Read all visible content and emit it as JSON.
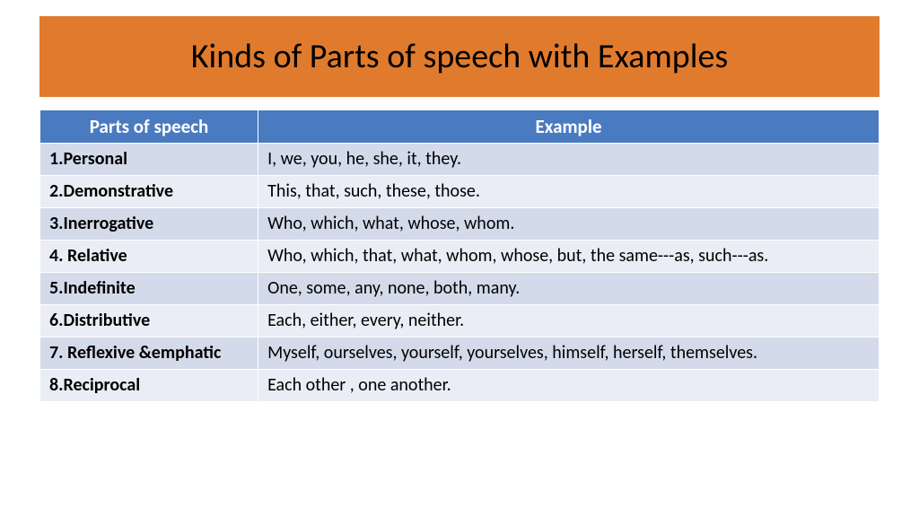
{
  "title": "Kinds of Parts of speech with Examples",
  "colors": {
    "title_bg": "#e07b2e",
    "title_text": "#000000",
    "header_bg": "#4a7ac0",
    "header_text": "#ffffff",
    "row_odd_bg": "#d3daea",
    "row_even_bg": "#eaedf5",
    "cell_border": "#ffffff"
  },
  "columns": {
    "parts": "Parts of speech",
    "example": "Example"
  },
  "rows": [
    {
      "label": "1.Personal",
      "example": "I, we, you, he, she, it, they."
    },
    {
      "label": "2.Demonstrative",
      "example": "This, that, such, these, those."
    },
    {
      "label": "3.Inerrogative",
      "example": "Who, which, what, whose, whom."
    },
    {
      "label": "4. Relative",
      "example": "Who, which, that, what, whom, whose, but, the same---as, such---as."
    },
    {
      "label": "5.Indefinite",
      "example": "One, some, any, none, both, many."
    },
    {
      "label": "6.Distributive",
      "example": "Each, either, every, neither."
    },
    {
      "label": "7. Reflexive &emphatic",
      "example": "Myself,  ourselves, yourself, yourselves, himself, herself, themselves."
    },
    {
      "label": "8.Reciprocal",
      "example": "Each other , one another."
    }
  ],
  "typography": {
    "title_fontsize": 38,
    "header_fontsize": 21,
    "cell_fontsize": 20
  }
}
